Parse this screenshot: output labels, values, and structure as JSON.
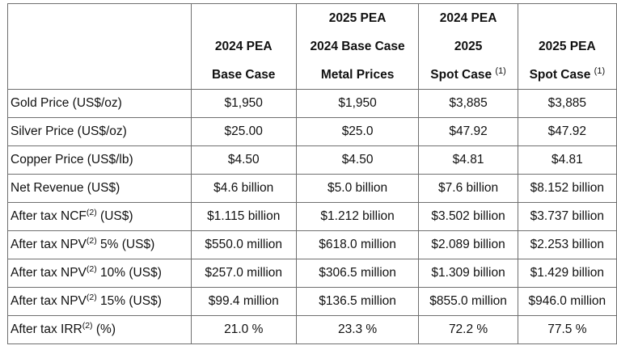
{
  "columns": [
    {
      "lines": [
        "",
        "2024 PEA",
        "Base Case"
      ],
      "note": ""
    },
    {
      "lines": [
        "2025 PEA",
        "2024 Base Case",
        "Metal Prices"
      ],
      "note": ""
    },
    {
      "lines": [
        "2024 PEA",
        "2025",
        "Spot Case "
      ],
      "note": "(1)"
    },
    {
      "lines": [
        "",
        "2025 PEA",
        "Spot Case "
      ],
      "note": "(1)"
    }
  ],
  "rows": [
    {
      "label": "Gold Price (US$/oz)",
      "label_sup": "",
      "label_tail": "",
      "values": [
        "$1,950",
        "$1,950",
        "$3,885",
        "$3,885"
      ]
    },
    {
      "label": "Silver Price (US$/oz)",
      "label_sup": "",
      "label_tail": "",
      "values": [
        "$25.00",
        "$25.0",
        "$47.92",
        "$47.92"
      ]
    },
    {
      "label": "Copper Price (US$/lb)",
      "label_sup": "",
      "label_tail": "",
      "values": [
        "$4.50",
        "$4.50",
        "$4.81",
        "$4.81"
      ]
    },
    {
      "label": "Net Revenue (US$)",
      "label_sup": "",
      "label_tail": "",
      "values": [
        "$4.6 billion",
        "$5.0 billion",
        "$7.6 billion",
        "$8.152 billion"
      ]
    },
    {
      "label": "After tax NCF",
      "label_sup": "(2)",
      "label_tail": " (US$)",
      "values": [
        "$1.115 billion",
        "$1.212 billion",
        "$3.502 billion",
        "$3.737 billion"
      ]
    },
    {
      "label": "After tax NPV",
      "label_sup": "(2)",
      "label_tail": " 5% (US$)",
      "values": [
        "$550.0 million",
        "$618.0 million",
        "$2.089 billion",
        "$2.253 billion"
      ]
    },
    {
      "label": "After tax NPV",
      "label_sup": "(2)",
      "label_tail": " 10% (US$)",
      "values": [
        "$257.0 million",
        "$306.5 million",
        "$1.309 billion",
        "$1.429 billion"
      ]
    },
    {
      "label": "After tax NPV",
      "label_sup": "(2)",
      "label_tail": " 15% (US$)",
      "values": [
        "$99.4 million",
        "$136.5 million",
        "$855.0 million",
        "$946.0 million"
      ]
    },
    {
      "label": "After tax IRR",
      "label_sup": "(2)",
      "label_tail": " (%)",
      "values": [
        "21.0 %",
        "23.3 %",
        "72.2 %",
        "77.5 %"
      ]
    }
  ]
}
